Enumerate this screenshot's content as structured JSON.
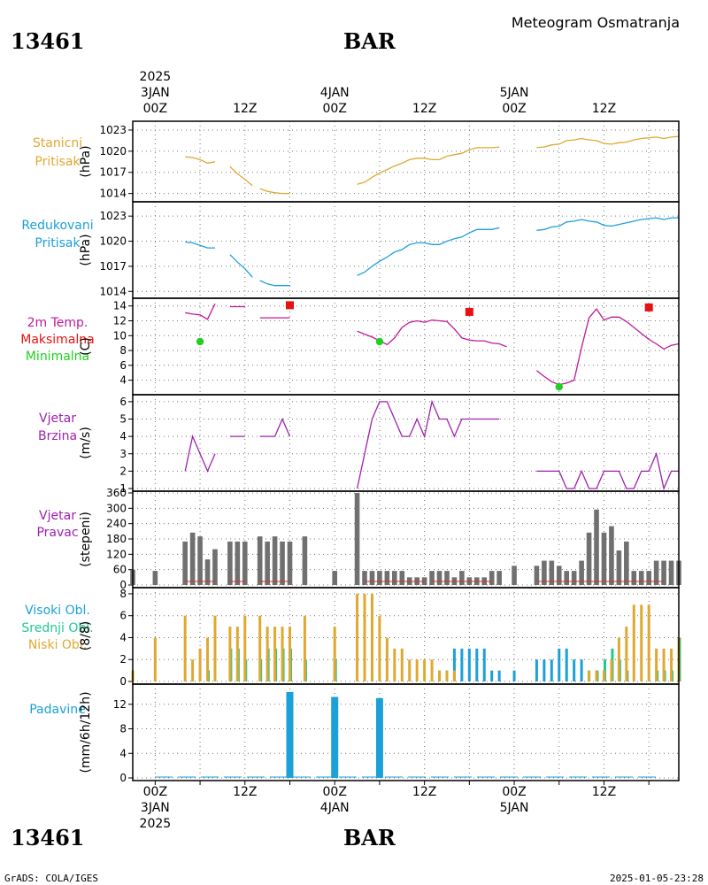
{
  "header": {
    "station_id": "13461",
    "station_name": "BAR",
    "chart_title": "Meteogram Osmatranja",
    "footer_left": "GrADS: COLA/IGES",
    "footer_right": "2025-01-05-23:28"
  },
  "colors": {
    "station_pressure": "#e0a830",
    "reduced_pressure": "#1ca0d8",
    "temperature": "#c0189a",
    "tmax": "#e81010",
    "tmin": "#20d020",
    "wind": "#a020b0",
    "wind_dir_bar": "#707070",
    "cloud_high": "#1ca0d8",
    "cloud_mid": "#20c890",
    "cloud_low": "#e0a830",
    "precip": "#1ca0d8"
  },
  "time_axis": {
    "top_labels": [
      {
        "hour": 0,
        "lines": [
          "2025",
          "3JAN",
          "00Z"
        ]
      },
      {
        "hour": 12,
        "lines": [
          "12Z"
        ]
      },
      {
        "hour": 24,
        "lines": [
          "4JAN",
          "00Z"
        ]
      },
      {
        "hour": 36,
        "lines": [
          "12Z"
        ]
      },
      {
        "hour": 48,
        "lines": [
          "5JAN",
          "00Z"
        ]
      },
      {
        "hour": 60,
        "lines": [
          "12Z"
        ]
      }
    ],
    "bottom_labels": [
      {
        "hour": 0,
        "lines": [
          "00Z",
          "3JAN",
          "2025"
        ]
      },
      {
        "hour": 12,
        "lines": [
          "12Z"
        ]
      },
      {
        "hour": 24,
        "lines": [
          "00Z",
          "4JAN"
        ]
      },
      {
        "hour": 36,
        "lines": [
          "12Z"
        ]
      },
      {
        "hour": 48,
        "lines": [
          "00Z",
          "5JAN"
        ]
      },
      {
        "hour": 60,
        "lines": [
          "12Z"
        ]
      }
    ],
    "range_hours": [
      -3,
      70
    ]
  },
  "chart_data": [
    {
      "type": "line",
      "panel": "station_pressure",
      "label_lines": [
        "Stanicni",
        "Pritisak"
      ],
      "ylabel": "(hPa)",
      "yticks": [
        1014,
        1017,
        1020,
        1023
      ],
      "ylim": [
        1013.2,
        1024.0
      ],
      "series": [
        {
          "x": [
            4,
            5,
            6,
            7,
            8
          ],
          "y": [
            1019.2,
            1019.1,
            1018.8,
            1018.3,
            1018.5
          ]
        },
        {
          "x": [
            10,
            11,
            12,
            13
          ],
          "y": [
            1017.8,
            1016.8,
            1016.0,
            1015.1
          ]
        },
        {
          "x": [
            14,
            15,
            16,
            17,
            18
          ],
          "y": [
            1014.7,
            1014.3,
            1014.1,
            1014.0,
            1014.0
          ]
        },
        {
          "x": [
            27,
            28,
            29,
            30,
            31,
            32,
            33,
            34,
            35,
            36,
            37,
            38,
            39,
            40,
            41,
            42,
            43,
            44,
            45,
            46
          ],
          "y": [
            1015.3,
            1015.6,
            1016.3,
            1016.9,
            1017.4,
            1017.9,
            1018.3,
            1018.8,
            1019.0,
            1019.0,
            1018.8,
            1018.8,
            1019.3,
            1019.5,
            1019.7,
            1020.2,
            1020.5,
            1020.5,
            1020.5,
            1020.6
          ]
        },
        {
          "x": [
            51,
            52,
            53,
            54,
            55,
            56,
            57,
            58,
            59,
            60,
            61,
            62,
            63,
            64,
            65,
            66,
            67,
            68,
            69,
            70
          ],
          "y": [
            1020.5,
            1020.6,
            1020.9,
            1021.0,
            1021.5,
            1021.6,
            1021.8,
            1021.6,
            1021.5,
            1021.1,
            1021.0,
            1021.2,
            1021.3,
            1021.6,
            1021.8,
            1021.9,
            1022.0,
            1021.8,
            1022.0,
            1022.1
          ]
        }
      ]
    },
    {
      "type": "line",
      "panel": "reduced_pressure",
      "label_lines": [
        "Redukovani",
        "Pritisak"
      ],
      "ylabel": "(hPa)",
      "yticks": [
        1014,
        1017,
        1020,
        1023
      ],
      "ylim": [
        1013.5,
        1024.5
      ],
      "series": [
        {
          "x": [
            4,
            5,
            6,
            7,
            8
          ],
          "y": [
            1019.9,
            1019.8,
            1019.5,
            1019.2,
            1019.2
          ]
        },
        {
          "x": [
            10,
            11,
            12,
            13
          ],
          "y": [
            1018.4,
            1017.5,
            1016.7,
            1015.7
          ]
        },
        {
          "x": [
            14,
            15,
            16,
            17,
            18
          ],
          "y": [
            1015.3,
            1014.9,
            1014.7,
            1014.7,
            1014.7
          ]
        },
        {
          "x": [
            27,
            28,
            29,
            30,
            31,
            32,
            33,
            34,
            35,
            36,
            37,
            38,
            39,
            40,
            41,
            42,
            43,
            44,
            45,
            46
          ],
          "y": [
            1015.9,
            1016.3,
            1017.0,
            1017.6,
            1018.1,
            1018.7,
            1019.0,
            1019.6,
            1019.8,
            1019.8,
            1019.6,
            1019.6,
            1020.0,
            1020.3,
            1020.5,
            1021.0,
            1021.4,
            1021.4,
            1021.4,
            1021.6
          ]
        },
        {
          "x": [
            51,
            52,
            53,
            54,
            55,
            56,
            57,
            58,
            59,
            60,
            61,
            62,
            63,
            64,
            65,
            66,
            67,
            68,
            69,
            70
          ],
          "y": [
            1021.3,
            1021.4,
            1021.7,
            1021.8,
            1022.3,
            1022.4,
            1022.6,
            1022.4,
            1022.3,
            1021.9,
            1021.8,
            1022.0,
            1022.2,
            1022.4,
            1022.6,
            1022.7,
            1022.8,
            1022.6,
            1022.8,
            1022.8
          ]
        }
      ]
    },
    {
      "type": "line",
      "panel": "temperature",
      "label_lines": [
        "2m Temp.",
        "Maksimalna",
        "Minimalna"
      ],
      "ylabel": "(C)",
      "yticks": [
        4,
        6,
        8,
        10,
        12,
        14
      ],
      "ylim": [
        2.4,
        14.8
      ],
      "series": [
        {
          "x": [
            4,
            5,
            6,
            7,
            8
          ],
          "y": [
            13.1,
            12.9,
            12.8,
            12.2,
            14.3
          ]
        },
        {
          "x": [
            10,
            11,
            12
          ],
          "y": [
            13.9,
            13.9,
            13.9
          ]
        },
        {
          "x": [
            14,
            15,
            16,
            17,
            18
          ],
          "y": [
            12.4,
            12.4,
            12.4,
            12.4,
            12.4
          ]
        },
        {
          "x": [
            27,
            28,
            29,
            30,
            31,
            32,
            33,
            34,
            35,
            36,
            37,
            38,
            39,
            40,
            41,
            42,
            43,
            44,
            45,
            46
          ],
          "y": [
            10.6,
            10.2,
            9.8,
            9.3,
            8.8,
            9.7,
            11.1,
            11.8,
            12.0,
            11.8,
            12.1,
            12.0,
            11.9,
            10.9,
            9.7,
            9.4,
            9.3,
            9.3,
            9.0,
            8.9
          ]
        },
        {
          "x": [
            46,
            47
          ],
          "y": [
            8.9,
            8.5
          ]
        },
        {
          "x": [
            51,
            52,
            53,
            54,
            55,
            56,
            57,
            58,
            59,
            60,
            61,
            62,
            63,
            64,
            65,
            66,
            67,
            68,
            69,
            70
          ],
          "y": [
            5.3,
            4.5,
            3.8,
            3.4,
            3.6,
            4.0,
            8.4,
            12.4,
            13.6,
            12.1,
            12.5,
            12.5,
            11.9,
            11.1,
            10.3,
            9.5,
            8.9,
            8.2,
            8.7,
            8.9
          ]
        }
      ],
      "tmax": [
        {
          "x": 18,
          "y": 14.1
        },
        {
          "x": 42,
          "y": 13.2
        },
        {
          "x": 66,
          "y": 13.8
        }
      ],
      "tmin": [
        {
          "x": 6,
          "y": 9.2
        },
        {
          "x": 30,
          "y": 9.2
        },
        {
          "x": 54,
          "y": 3.1
        }
      ]
    },
    {
      "type": "line",
      "panel": "wind_speed",
      "label_lines": [
        "Vjetar",
        "Brzina"
      ],
      "ylabel": "(m/s)",
      "yticks": [
        1,
        2,
        3,
        4,
        5,
        6
      ],
      "ylim": [
        1,
        6.3
      ],
      "series": [
        {
          "x": [
            4,
            5,
            6,
            7,
            8
          ],
          "y": [
            2,
            4,
            3,
            2,
            3
          ]
        },
        {
          "x": [
            10,
            11,
            12
          ],
          "y": [
            4,
            4,
            4
          ]
        },
        {
          "x": [
            14,
            15,
            16,
            17,
            18
          ],
          "y": [
            4,
            4,
            4,
            5,
            4
          ]
        },
        {
          "x": [
            27,
            28,
            29,
            30,
            31,
            32,
            33,
            34,
            35,
            36,
            37,
            38,
            39,
            40,
            41,
            42,
            43,
            44,
            45,
            46
          ],
          "y": [
            1,
            3,
            5,
            6,
            6,
            5,
            4,
            4,
            5,
            4,
            6,
            5,
            5,
            4,
            5,
            5,
            5,
            5,
            5,
            5
          ]
        },
        {
          "x": [
            51,
            52,
            53,
            54,
            55,
            56,
            57,
            58,
            59,
            60,
            61,
            62,
            63,
            64,
            65,
            66,
            67,
            68,
            69,
            70
          ],
          "y": [
            2,
            2,
            2,
            2,
            1,
            1,
            2,
            1,
            1,
            2,
            2,
            2,
            1,
            1,
            2,
            2,
            3,
            1,
            2,
            2
          ]
        }
      ]
    },
    {
      "type": "bar",
      "panel": "wind_direction",
      "label_lines": [
        "Vjetar",
        "Pravac"
      ],
      "ylabel": "(stepeni)",
      "yticks": [
        0,
        60,
        120,
        180,
        240,
        300,
        360
      ],
      "ylim": [
        0,
        360
      ],
      "x": [
        -3,
        0,
        4,
        5,
        6,
        7,
        8,
        10,
        11,
        12,
        14,
        15,
        16,
        17,
        18,
        20,
        24,
        27,
        28,
        29,
        30,
        31,
        32,
        33,
        34,
        35,
        36,
        37,
        38,
        39,
        40,
        41,
        42,
        43,
        44,
        45,
        46,
        48,
        51,
        52,
        53,
        54,
        55,
        56,
        57,
        58,
        59,
        60,
        61,
        62,
        63,
        64,
        65,
        66,
        67,
        68,
        69,
        70
      ],
      "values": [
        60,
        55,
        170,
        205,
        190,
        100,
        140,
        170,
        170,
        170,
        190,
        170,
        190,
        170,
        170,
        190,
        55,
        360,
        55,
        55,
        55,
        55,
        55,
        55,
        30,
        30,
        30,
        55,
        55,
        55,
        30,
        55,
        30,
        30,
        30,
        55,
        55,
        75,
        75,
        95,
        95,
        75,
        55,
        55,
        95,
        205,
        295,
        205,
        230,
        135,
        170,
        55,
        55,
        55,
        95,
        95,
        95,
        95
      ]
    },
    {
      "type": "bar",
      "panel": "clouds",
      "label_lines": [
        "Visoki Obl.",
        "Srednji Obl.",
        "Niski Obl."
      ],
      "ylabel": "(8/8)",
      "yticks": [
        0,
        2,
        4,
        6,
        8
      ],
      "ylim": [
        0,
        8.4
      ],
      "low": {
        "x": [
          -3,
          0,
          4,
          5,
          6,
          7,
          8,
          10,
          11,
          12,
          14,
          15,
          16,
          17,
          18,
          20,
          24,
          27,
          28,
          29,
          30,
          31,
          32,
          33,
          34,
          35,
          36,
          37,
          38,
          39,
          40,
          51,
          52,
          53,
          54,
          55,
          56,
          57,
          58,
          59,
          60,
          61,
          62,
          63,
          64,
          65,
          66,
          67,
          68,
          69,
          70
        ],
        "values": [
          1,
          4,
          6,
          2,
          3,
          4,
          6,
          5,
          5,
          6,
          6,
          5,
          5,
          5,
          5,
          6,
          5,
          8,
          8,
          8,
          6,
          4,
          3,
          3,
          2,
          2,
          2,
          2,
          1,
          1,
          1,
          0,
          0,
          0,
          0,
          0,
          0,
          0,
          1,
          1,
          1,
          2,
          4,
          5,
          7,
          7,
          7,
          3,
          3,
          3,
          4
        ]
      },
      "mid": {
        "x": [
          7,
          10,
          11,
          12,
          14,
          15,
          16,
          17,
          18,
          20,
          24,
          59,
          60,
          61,
          62,
          63,
          64,
          67,
          68,
          69,
          70
        ],
        "values": [
          1,
          3,
          3,
          2,
          2,
          3,
          3,
          3,
          3,
          2,
          2,
          1,
          2,
          3,
          2,
          1,
          0,
          1,
          1,
          1,
          4
        ]
      },
      "high": {
        "x": [
          24,
          38,
          39,
          40,
          41,
          42,
          43,
          44,
          45,
          46,
          48,
          51,
          52,
          53,
          54,
          55,
          56,
          57,
          58,
          59,
          60
        ],
        "values": [
          2,
          1,
          1,
          3,
          3,
          3,
          3,
          3,
          1,
          1,
          1,
          2,
          2,
          2,
          3,
          3,
          2,
          2,
          1,
          1,
          1
        ]
      }
    },
    {
      "type": "bar",
      "panel": "precipitation",
      "label_lines": [
        "Padavine"
      ],
      "ylabel": "(mm/6h/12h)",
      "yticks": [
        0,
        4,
        8,
        12
      ],
      "ylim": [
        0,
        15
      ],
      "x": [
        18,
        24,
        30
      ],
      "values": [
        14.0,
        13.2,
        13.0
      ]
    }
  ]
}
